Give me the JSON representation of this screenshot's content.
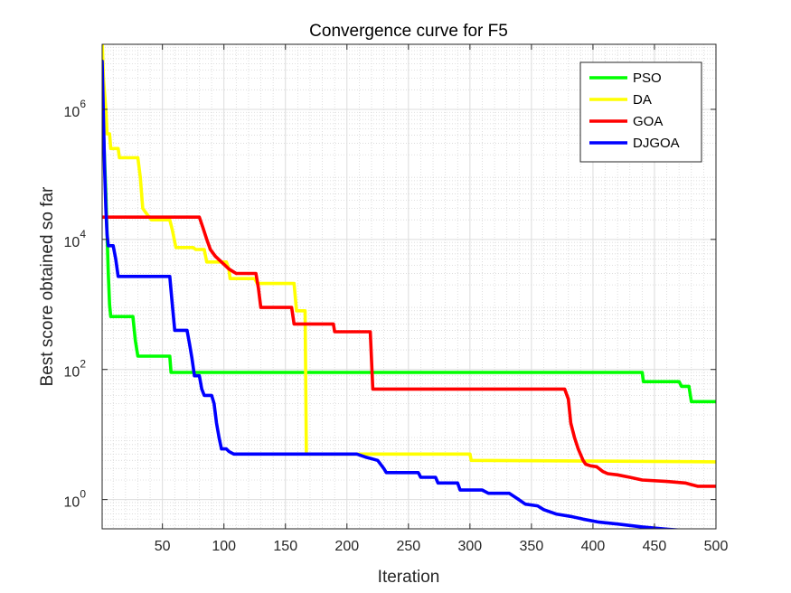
{
  "chart_data": {
    "type": "line",
    "title": "Convergence curve for F5",
    "xlabel": "Iteration",
    "ylabel": "Best score obtained so far",
    "xlim": [
      1,
      500
    ],
    "ylim_log10": [
      -0.45,
      7.0
    ],
    "yscale": "log",
    "grid": true,
    "minor_grid": true,
    "legend_position": "top-right",
    "x_ticks": [
      50,
      100,
      150,
      200,
      250,
      300,
      350,
      400,
      450,
      500
    ],
    "y_ticks": [
      {
        "exp": 0,
        "label": "10",
        "sup": "0"
      },
      {
        "exp": 2,
        "label": "10",
        "sup": "2"
      },
      {
        "exp": 4,
        "label": "10",
        "sup": "4"
      },
      {
        "exp": 6,
        "label": "10",
        "sup": "6"
      }
    ],
    "series": [
      {
        "name": "PSO",
        "color": "#00ff00",
        "points": [
          [
            1,
            5000000
          ],
          [
            2,
            500000
          ],
          [
            4,
            50000
          ],
          [
            6,
            3000
          ],
          [
            7,
            1000
          ],
          [
            8,
            650
          ],
          [
            26,
            650
          ],
          [
            28,
            280
          ],
          [
            30,
            160
          ],
          [
            56,
            160
          ],
          [
            57,
            90
          ],
          [
            440,
            90
          ],
          [
            441,
            65
          ],
          [
            470,
            65
          ],
          [
            472,
            55
          ],
          [
            478,
            55
          ],
          [
            480,
            32
          ],
          [
            500,
            32
          ]
        ]
      },
      {
        "name": "DA",
        "color": "#ffff00",
        "points": [
          [
            1,
            12000000
          ],
          [
            2,
            3000000
          ],
          [
            4,
            1000000
          ],
          [
            5,
            420000
          ],
          [
            7,
            420000
          ],
          [
            8,
            250000
          ],
          [
            14,
            250000
          ],
          [
            15,
            180000
          ],
          [
            30,
            180000
          ],
          [
            32,
            90000
          ],
          [
            34,
            30000
          ],
          [
            37,
            25000
          ],
          [
            41,
            20000
          ],
          [
            56,
            20000
          ],
          [
            58,
            14000
          ],
          [
            61,
            7500
          ],
          [
            75,
            7500
          ],
          [
            77,
            7000
          ],
          [
            84,
            7000
          ],
          [
            86,
            4500
          ],
          [
            102,
            4500
          ],
          [
            104,
            3500
          ],
          [
            105,
            2500
          ],
          [
            125,
            2500
          ],
          [
            127,
            2100
          ],
          [
            157,
            2100
          ],
          [
            159,
            800
          ],
          [
            166,
            800
          ],
          [
            167,
            5
          ],
          [
            225,
            5
          ],
          [
            226,
            5
          ],
          [
            300,
            5
          ],
          [
            301,
            4
          ],
          [
            500,
            3.8
          ]
        ]
      },
      {
        "name": "GOA",
        "color": "#ff0000",
        "points": [
          [
            1,
            22000
          ],
          [
            80,
            22000
          ],
          [
            83,
            15000
          ],
          [
            86,
            10000
          ],
          [
            89,
            7000
          ],
          [
            93,
            5500
          ],
          [
            98,
            4500
          ],
          [
            104,
            3500
          ],
          [
            110,
            3000
          ],
          [
            115,
            3000
          ],
          [
            116,
            3000
          ],
          [
            126,
            3000
          ],
          [
            128,
            1800
          ],
          [
            130,
            900
          ],
          [
            155,
            900
          ],
          [
            157,
            500
          ],
          [
            189,
            500
          ],
          [
            190,
            380
          ],
          [
            219,
            380
          ],
          [
            221,
            50
          ],
          [
            377,
            50
          ],
          [
            380,
            35
          ],
          [
            382,
            15
          ],
          [
            385,
            9
          ],
          [
            388,
            6
          ],
          [
            392,
            4
          ],
          [
            394,
            3.5
          ],
          [
            398,
            3.3
          ],
          [
            403,
            3.2
          ],
          [
            408,
            2.7
          ],
          [
            412,
            2.5
          ],
          [
            420,
            2.4
          ],
          [
            430,
            2.2
          ],
          [
            440,
            2.0
          ],
          [
            460,
            1.9
          ],
          [
            475,
            1.8
          ],
          [
            485,
            1.6
          ],
          [
            500,
            1.6
          ]
        ]
      },
      {
        "name": "DJGOA",
        "color": "#0000ff",
        "points": [
          [
            1,
            5500000
          ],
          [
            2,
            800000
          ],
          [
            3,
            120000
          ],
          [
            4,
            30000
          ],
          [
            5,
            12000
          ],
          [
            6,
            8000
          ],
          [
            10,
            8000
          ],
          [
            12,
            5000
          ],
          [
            14,
            2700
          ],
          [
            56,
            2700
          ],
          [
            58,
            1000
          ],
          [
            60,
            400
          ],
          [
            70,
            400
          ],
          [
            72,
            250
          ],
          [
            74,
            150
          ],
          [
            76,
            80
          ],
          [
            80,
            80
          ],
          [
            82,
            50
          ],
          [
            84,
            40
          ],
          [
            90,
            40
          ],
          [
            92,
            30
          ],
          [
            94,
            15
          ],
          [
            96,
            9
          ],
          [
            98,
            6
          ],
          [
            102,
            6
          ],
          [
            104,
            5.5
          ],
          [
            108,
            5
          ],
          [
            120,
            5
          ],
          [
            150,
            5
          ],
          [
            208,
            5
          ],
          [
            215,
            4.5
          ],
          [
            225,
            4
          ],
          [
            230,
            3
          ],
          [
            232,
            2.6
          ],
          [
            258,
            2.6
          ],
          [
            260,
            2.2
          ],
          [
            272,
            2.2
          ],
          [
            274,
            1.8
          ],
          [
            290,
            1.8
          ],
          [
            292,
            1.4
          ],
          [
            310,
            1.4
          ],
          [
            315,
            1.25
          ],
          [
            332,
            1.25
          ],
          [
            338,
            1.05
          ],
          [
            345,
            0.85
          ],
          [
            355,
            0.8
          ],
          [
            360,
            0.7
          ],
          [
            370,
            0.6
          ],
          [
            382,
            0.55
          ],
          [
            392,
            0.5
          ],
          [
            405,
            0.45
          ],
          [
            420,
            0.42
          ],
          [
            440,
            0.38
          ],
          [
            460,
            0.35
          ],
          [
            480,
            0.33
          ],
          [
            500,
            0.33
          ]
        ]
      }
    ]
  }
}
